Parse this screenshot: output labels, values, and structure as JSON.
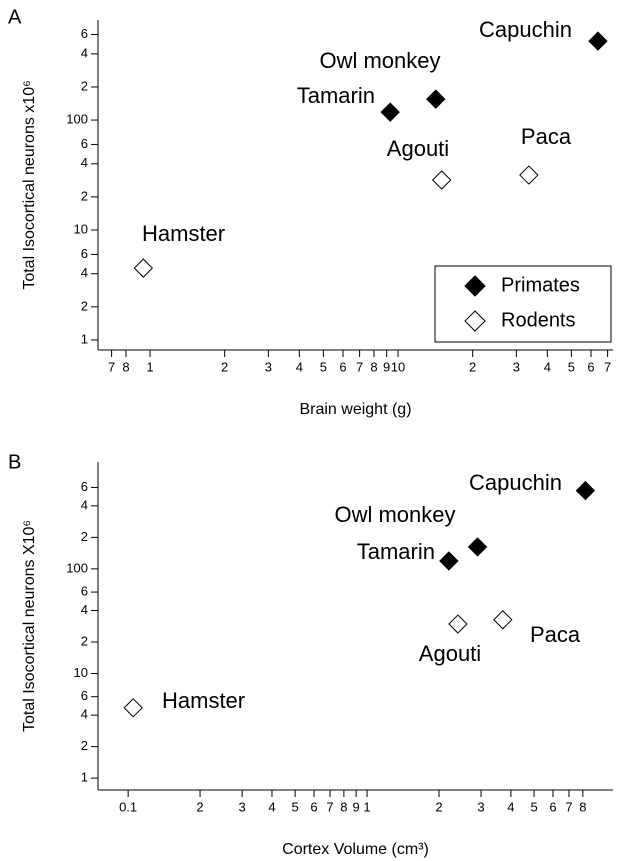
{
  "chart_data": [
    {
      "type": "scatter",
      "panel_label": "A",
      "xlabel": "Brain weight (g)",
      "ylabel": "Total Isocortical neurons x10⁶",
      "log_x": true,
      "log_y": true,
      "legend": "lower right",
      "xlim": [
        0.617,
        73.6
      ],
      "ylim": [
        0.81,
        813
      ],
      "xticks": [
        {
          "value": 0.7,
          "label": "7"
        },
        {
          "value": 0.8,
          "label": "8"
        },
        1,
        2,
        3,
        4,
        5,
        6,
        7,
        8,
        9,
        10,
        {
          "value": 20,
          "label": "2"
        },
        {
          "value": 30,
          "label": "3"
        },
        {
          "value": 40,
          "label": "4"
        },
        {
          "value": 50,
          "label": "5"
        },
        {
          "value": 60,
          "label": "6"
        },
        {
          "value": 70,
          "label": "7"
        }
      ],
      "yticks": [
        1,
        2,
        4,
        6,
        10,
        {
          "value": 20,
          "label": "2"
        },
        {
          "value": 40,
          "label": "4"
        },
        {
          "value": 60,
          "label": "6"
        },
        100,
        {
          "value": 200,
          "label": "2"
        },
        {
          "value": 400,
          "label": "4"
        },
        {
          "value": 600,
          "label": "6"
        }
      ],
      "series": [
        {
          "name": "Primates",
          "color": "#000000",
          "filled": true,
          "labels": [
            "Tamarin",
            "Owl monkey",
            "Capuchin"
          ],
          "x": [
            9.3,
            14.2,
            64
          ],
          "values": [
            118,
            155,
            523
          ]
        },
        {
          "name": "Rodents",
          "color": "#000000",
          "filled": false,
          "labels": [
            "Hamster",
            "Agouti",
            "Paca"
          ],
          "x": [
            0.94,
            15,
            33.7
          ],
          "values": [
            4.5,
            28.5,
            31.6
          ]
        }
      ]
    },
    {
      "type": "scatter",
      "panel_label": "B",
      "xlabel": "Cortex Volume (cm³)",
      "ylabel": "Total Isocortical neurons X10⁶",
      "log_x": true,
      "log_y": true,
      "xlim": [
        0.0748,
        10.7
      ],
      "ylim": [
        0.77,
        1050
      ],
      "xticks": [
        0.1,
        {
          "value": 0.2,
          "label": "2"
        },
        {
          "value": 0.3,
          "label": "3"
        },
        {
          "value": 0.4,
          "label": "4"
        },
        {
          "value": 0.5,
          "label": "5"
        },
        {
          "value": 0.6,
          "label": "6"
        },
        {
          "value": 0.7,
          "label": "7"
        },
        {
          "value": 0.8,
          "label": "8"
        },
        {
          "value": 0.9,
          "label": "9"
        },
        1,
        2,
        3,
        4,
        5,
        6,
        7,
        8
      ],
      "yticks": [
        1,
        2,
        4,
        6,
        10,
        {
          "value": 20,
          "label": "2"
        },
        {
          "value": 40,
          "label": "4"
        },
        {
          "value": 60,
          "label": "6"
        },
        100,
        {
          "value": 200,
          "label": "2"
        },
        {
          "value": 400,
          "label": "4"
        },
        {
          "value": 600,
          "label": "6"
        }
      ],
      "series": [
        {
          "color": "#000000",
          "filled": true,
          "labels": [
            "Tamarin",
            "Owl monkey",
            "Capuchin"
          ],
          "x": [
            2.2,
            2.9,
            8.2
          ],
          "values": [
            119,
            162,
            560
          ]
        },
        {
          "color": "#000000",
          "filled": false,
          "labels": [
            "Hamster",
            "Agouti",
            "Paca"
          ],
          "x": [
            0.105,
            2.4,
            3.7
          ],
          "values": [
            4.7,
            29.7,
            32.6
          ]
        }
      ]
    }
  ]
}
